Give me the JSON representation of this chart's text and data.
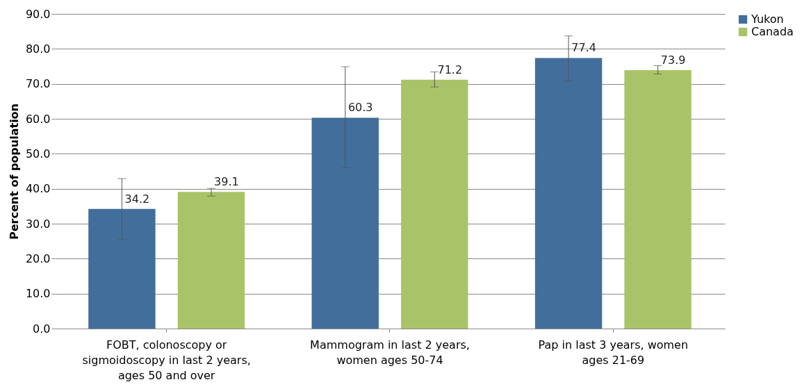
{
  "chart_data": {
    "type": "bar",
    "ylabel": "Percent of population",
    "categories": [
      "FOBT, colonoscopy or sigmoidoscopy in last 2 years, ages 50 and over",
      "Mammogram in last 2 years, women ages 50-74",
      "Pap in last 3 years, women ages 21-69"
    ],
    "series": [
      {
        "name": "Yukon",
        "color": "#426e9c",
        "values": [
          34.2,
          60.3,
          77.4
        ],
        "value_labels": [
          "34.2",
          "60.3",
          "77.4"
        ],
        "errors": [
          [
            25.5,
            42.9
          ],
          [
            46.0,
            74.9
          ],
          [
            70.8,
            83.7
          ]
        ]
      },
      {
        "name": "Canada",
        "color": "#a9c468",
        "values": [
          39.1,
          71.2,
          73.9
        ],
        "value_labels": [
          "39.1",
          "71.2",
          "73.9"
        ],
        "errors": [
          [
            37.9,
            40.1
          ],
          [
            69.1,
            73.4
          ],
          [
            72.8,
            75.2
          ]
        ]
      }
    ],
    "ylim": [
      0,
      90
    ],
    "yticks": [
      {
        "value": 0,
        "label": "0.0"
      },
      {
        "value": 10,
        "label": "10.0"
      },
      {
        "value": 20,
        "label": "20.0"
      },
      {
        "value": 30,
        "label": "30.0"
      },
      {
        "value": 40,
        "label": "40.0"
      },
      {
        "value": 50,
        "label": "50.0"
      },
      {
        "value": 60,
        "label": "60.0"
      },
      {
        "value": 70,
        "label": "70.0"
      },
      {
        "value": 80,
        "label": "80.0"
      },
      {
        "value": 90,
        "label": "90.0"
      }
    ],
    "grid": "y",
    "legend": "right"
  }
}
